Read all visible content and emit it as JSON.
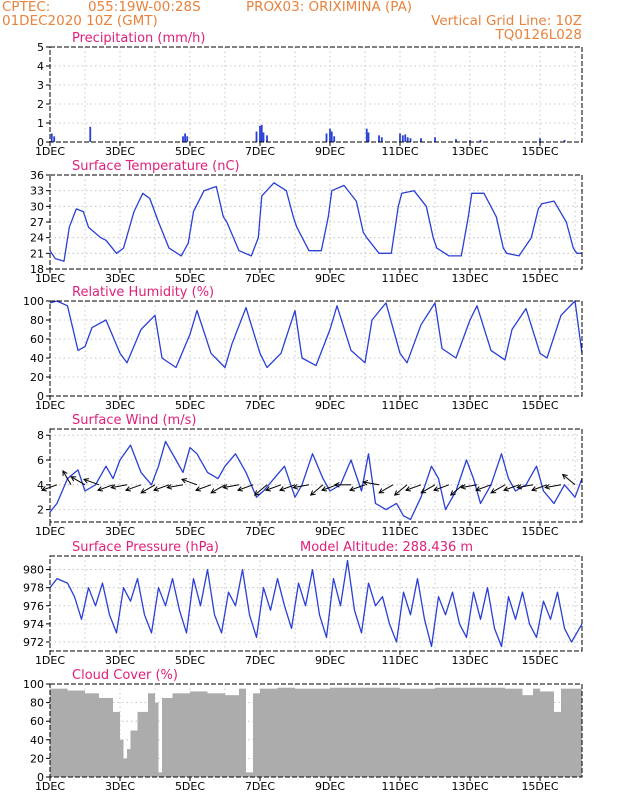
{
  "header": {
    "source": "CPTEC:",
    "coords": "055:19W-00:28S",
    "location": "PROX03: ORIXIMINA (PA)",
    "run_time": "01DEC2020 10Z (GMT)",
    "grid_note": "Vertical Grid Line: 10Z",
    "model_code": "TQ0126L028"
  },
  "colors": {
    "header_text": "#e8823c",
    "panel_title": "#e0207a",
    "series": "#2a3fd6",
    "cloud_fill": "#acacac",
    "grid": "#b8b8b8"
  },
  "x_axis": {
    "tick_labels": [
      "1DEC",
      "3DEC",
      "5DEC",
      "7DEC",
      "9DEC",
      "11DEC",
      "13DEC",
      "15DEC"
    ],
    "start_day": 1,
    "end_day": 16.2
  },
  "chart_data": [
    {
      "type": "bar",
      "title": "Precipitation (mm/h)",
      "ylim": [
        0,
        5
      ],
      "yticks": [
        "0",
        "1",
        "2",
        "3",
        "4",
        "5"
      ],
      "x_days": [
        1.05,
        1.12,
        2.15,
        4.8,
        4.86,
        4.92,
        6.9,
        7.0,
        7.05,
        7.1,
        7.2,
        8.9,
        9.0,
        9.05,
        9.12,
        10.05,
        10.1,
        10.4,
        10.48,
        11.0,
        11.08,
        11.15,
        11.22,
        11.3,
        11.6,
        12.0,
        12.6,
        13.0,
        13.3,
        15.0,
        15.7
      ],
      "values": [
        0.45,
        0.3,
        0.8,
        0.3,
        0.45,
        0.3,
        0.55,
        0.85,
        0.9,
        0.5,
        0.35,
        0.45,
        0.7,
        0.55,
        0.3,
        0.7,
        0.5,
        0.35,
        0.25,
        0.45,
        0.35,
        0.4,
        0.25,
        0.2,
        0.2,
        0.25,
        0.15,
        0.1,
        0.1,
        0.2,
        0.1
      ]
    },
    {
      "type": "line",
      "title": "Surface Temperature (nC)",
      "ylim": [
        18,
        36
      ],
      "yticks": [
        "18",
        "21",
        "24",
        "27",
        "30",
        "33",
        "36"
      ],
      "x_days": [
        1.0,
        1.15,
        1.4,
        1.55,
        1.75,
        1.95,
        2.1,
        2.45,
        2.6,
        2.9,
        3.1,
        3.4,
        3.65,
        3.85,
        4.1,
        4.4,
        4.75,
        4.95,
        5.1,
        5.4,
        5.75,
        5.95,
        6.05,
        6.4,
        6.75,
        6.95,
        7.05,
        7.4,
        7.75,
        7.95,
        8.05,
        8.4,
        8.75,
        8.95,
        9.05,
        9.4,
        9.75,
        9.95,
        10.05,
        10.4,
        10.75,
        10.95,
        11.05,
        11.4,
        11.75,
        11.95,
        12.05,
        12.4,
        12.75,
        12.95,
        13.05,
        13.4,
        13.75,
        13.95,
        14.05,
        14.4,
        14.75,
        14.95,
        15.05,
        15.4,
        15.75,
        15.95,
        16.05,
        16.2
      ],
      "values": [
        21.5,
        20,
        19.5,
        26,
        29.5,
        29,
        26,
        24,
        23.5,
        21,
        22,
        29,
        32.5,
        31.5,
        27,
        22,
        20.5,
        23,
        29,
        33,
        33.8,
        28,
        27,
        21.5,
        20.5,
        24,
        32,
        34.5,
        33,
        28,
        26,
        21.5,
        21.5,
        28,
        33,
        34,
        31,
        25,
        24,
        21,
        21,
        30,
        32.5,
        33,
        30,
        24,
        22,
        20.5,
        20.5,
        28,
        32.5,
        32.5,
        28,
        22,
        21,
        20.5,
        24,
        29.5,
        30.5,
        31,
        27,
        22,
        21,
        21
      ]
    },
    {
      "type": "line",
      "title": "Relative Humidity (%)",
      "ylim": [
        0,
        100
      ],
      "yticks": [
        "0",
        "20",
        "40",
        "60",
        "80",
        "100"
      ],
      "x_days": [
        1.0,
        1.2,
        1.5,
        1.8,
        2.0,
        2.2,
        2.6,
        3.0,
        3.2,
        3.6,
        4.0,
        4.2,
        4.6,
        5.0,
        5.2,
        5.6,
        6.0,
        6.2,
        6.6,
        7.0,
        7.2,
        7.6,
        8.0,
        8.2,
        8.6,
        9.0,
        9.2,
        9.6,
        10.0,
        10.2,
        10.6,
        11.0,
        11.2,
        11.6,
        12.0,
        12.2,
        12.6,
        13.0,
        13.2,
        13.6,
        14.0,
        14.2,
        14.6,
        15.0,
        15.2,
        15.6,
        16.0,
        16.2
      ],
      "values": [
        98,
        100,
        95,
        48,
        52,
        72,
        80,
        45,
        35,
        70,
        85,
        40,
        30,
        65,
        90,
        45,
        30,
        55,
        93,
        45,
        30,
        45,
        90,
        40,
        32,
        70,
        95,
        48,
        35,
        80,
        98,
        45,
        35,
        75,
        98,
        50,
        40,
        80,
        95,
        48,
        38,
        70,
        92,
        45,
        40,
        85,
        100,
        45
      ]
    },
    {
      "type": "line",
      "title": "Surface Wind (m/s)",
      "ylim": [
        1,
        8.5
      ],
      "yticks": [
        "2",
        "4",
        "6",
        "8"
      ],
      "x_days": [
        1.0,
        1.2,
        1.5,
        1.8,
        2.0,
        2.3,
        2.6,
        2.8,
        3.0,
        3.3,
        3.6,
        3.9,
        4.1,
        4.3,
        4.6,
        4.8,
        5.0,
        5.2,
        5.5,
        5.8,
        6.0,
        6.3,
        6.6,
        6.9,
        7.1,
        7.4,
        7.7,
        8.0,
        8.2,
        8.5,
        8.8,
        9.0,
        9.3,
        9.6,
        9.9,
        10.1,
        10.3,
        10.6,
        10.9,
        11.1,
        11.3,
        11.6,
        11.9,
        12.1,
        12.3,
        12.6,
        12.9,
        13.1,
        13.3,
        13.6,
        13.9,
        14.1,
        14.3,
        14.6,
        14.9,
        15.1,
        15.4,
        15.7,
        16.0,
        16.2
      ],
      "values": [
        1.8,
        2.5,
        4.5,
        5.2,
        3.5,
        4.0,
        5.5,
        4.5,
        6.0,
        7.2,
        5.0,
        4.0,
        5.5,
        7.5,
        6.0,
        5.0,
        7.0,
        6.5,
        5.0,
        4.5,
        5.5,
        6.5,
        5.0,
        3.0,
        3.5,
        4.5,
        5.5,
        3.0,
        4.0,
        6.5,
        4.5,
        3.5,
        4.0,
        6.0,
        3.5,
        6.5,
        2.5,
        2.0,
        2.5,
        1.5,
        1.2,
        3.0,
        5.5,
        4.5,
        2.0,
        3.5,
        6.0,
        4.5,
        2.5,
        4.0,
        6.5,
        4.5,
        3.5,
        4.0,
        5.5,
        3.5,
        2.5,
        4.0,
        3.0,
        4.5
      ],
      "vector_days": [
        1.2,
        1.6,
        2.0,
        2.4,
        2.8,
        3.2,
        3.6,
        4.0,
        4.4,
        4.8,
        5.2,
        5.6,
        6.0,
        6.4,
        6.8,
        7.2,
        7.6,
        8.0,
        8.4,
        8.8,
        9.2,
        9.6,
        10.0,
        10.4,
        10.8,
        11.2,
        11.6,
        12.0,
        12.4,
        12.8,
        13.2,
        13.6,
        14.0,
        14.4,
        14.8,
        15.2,
        15.6,
        16.0
      ],
      "vector_angles_deg": [
        200,
        120,
        150,
        160,
        200,
        190,
        200,
        210,
        200,
        190,
        160,
        200,
        210,
        190,
        200,
        220,
        200,
        200,
        190,
        220,
        200,
        180,
        200,
        170,
        210,
        220,
        200,
        210,
        200,
        220,
        190,
        200,
        210,
        200,
        190,
        200,
        190,
        140
      ]
    },
    {
      "type": "line",
      "title": "Surface Pressure (hPa)",
      "annotation": "Model Altitude: 288.436 m",
      "ylim": [
        971,
        981.5
      ],
      "yticks": [
        "972",
        "974",
        "976",
        "978",
        "980"
      ],
      "x_days": [
        1.0,
        1.2,
        1.5,
        1.7,
        1.9,
        2.1,
        2.3,
        2.5,
        2.7,
        2.9,
        3.1,
        3.3,
        3.5,
        3.7,
        3.9,
        4.1,
        4.3,
        4.5,
        4.7,
        4.9,
        5.1,
        5.3,
        5.5,
        5.7,
        5.9,
        6.1,
        6.3,
        6.5,
        6.7,
        6.9,
        7.1,
        7.3,
        7.5,
        7.7,
        7.9,
        8.1,
        8.3,
        8.5,
        8.7,
        8.9,
        9.1,
        9.3,
        9.5,
        9.7,
        9.9,
        10.1,
        10.3,
        10.5,
        10.7,
        10.9,
        11.1,
        11.3,
        11.5,
        11.7,
        11.9,
        12.1,
        12.3,
        12.5,
        12.7,
        12.9,
        13.1,
        13.3,
        13.5,
        13.7,
        13.9,
        14.1,
        14.3,
        14.5,
        14.7,
        14.9,
        15.1,
        15.3,
        15.5,
        15.7,
        15.9,
        16.2
      ],
      "values": [
        978,
        979,
        978.5,
        977,
        974.5,
        978,
        976,
        978.5,
        975,
        973,
        978,
        976.5,
        979,
        975,
        973,
        978,
        976,
        979,
        975.5,
        973,
        979,
        976,
        980,
        975,
        973,
        977.5,
        976,
        980,
        975,
        972.5,
        978,
        975.5,
        979,
        976,
        973.5,
        978.5,
        976,
        980,
        975,
        972.5,
        979,
        976,
        981,
        975.5,
        973,
        978.5,
        976,
        977,
        974,
        972,
        977.5,
        975,
        979,
        974.5,
        971.5,
        977,
        975,
        977.5,
        974,
        972.5,
        977.5,
        974.5,
        978,
        973.5,
        971.5,
        977,
        974.5,
        977.5,
        974,
        972.5,
        976.5,
        974.5,
        977.5,
        973.5,
        972,
        974
      ]
    },
    {
      "type": "bar",
      "title": "Cloud Cover (%)",
      "ylim": [
        0,
        100
      ],
      "yticks": [
        "0",
        "20",
        "40",
        "60",
        "80",
        "100"
      ],
      "x_days": [
        1.0,
        1.5,
        2.0,
        2.4,
        2.8,
        3.0,
        3.1,
        3.2,
        3.3,
        3.5,
        3.8,
        4.0,
        4.1,
        4.2,
        4.5,
        5.0,
        5.5,
        6.0,
        6.4,
        6.6,
        6.8,
        7.0,
        7.5,
        8.0,
        9.0,
        10.0,
        11.0,
        12.0,
        13.0,
        14.0,
        14.5,
        14.8,
        15.0,
        15.4,
        15.6,
        16.0
      ],
      "values": [
        95,
        93,
        90,
        85,
        70,
        40,
        20,
        30,
        50,
        70,
        90,
        80,
        5,
        85,
        90,
        92,
        90,
        88,
        95,
        5,
        90,
        95,
        96,
        95,
        96,
        96,
        95,
        96,
        96,
        95,
        88,
        95,
        92,
        70,
        95,
        95
      ]
    }
  ]
}
